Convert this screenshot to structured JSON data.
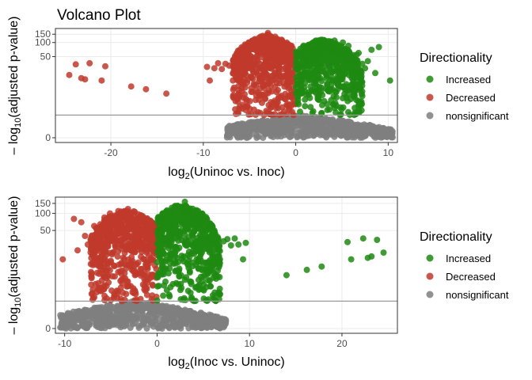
{
  "title": "Volcano Plot",
  "colors": {
    "increased": "#1f8a12",
    "decreased": "#c0392b",
    "nonsignificant": "#7f7f7f",
    "panel_border": "#333333",
    "grid": "#ebebeb",
    "threshold": "#999999"
  },
  "chart_data": [
    {
      "type": "scatter",
      "xlabel_base": "log",
      "xlabel_sub": "2",
      "xlabel_rest": "(Uninoc vs. Inoc)",
      "ylabel_lead": "– log",
      "ylabel_sub": "10",
      "ylabel_rest": "(adjusted p-value)",
      "xlim": [
        -26,
        11
      ],
      "x_ticks": [
        -20,
        -10,
        0,
        10
      ],
      "x_tick_labels": [
        "-20",
        "-10",
        "0",
        "10"
      ],
      "y_scale": "pseudo-log",
      "y_ticks": [
        0,
        50,
        100,
        150
      ],
      "y_tick_labels": [
        "0",
        "50",
        "100",
        "150"
      ],
      "threshold_y": 2,
      "legend": {
        "title": "Directionality",
        "position": "right",
        "entries": [
          "Increased",
          "Decreased",
          "nonsignificant"
        ]
      },
      "series": [
        {
          "name": "Increased",
          "x": [
            10.2,
            9.0,
            8.2,
            7.8,
            7.5,
            7.2,
            6.8,
            6.4,
            6.0,
            5.7,
            5.4,
            5.1,
            4.8,
            4.5,
            4.2,
            3.8,
            3.3,
            2.8,
            7.0,
            6.6,
            8.6
          ],
          "y": [
            15,
            80,
            70,
            40,
            28,
            35,
            60,
            25,
            45,
            85,
            30,
            100,
            20,
            70,
            110,
            50,
            95,
            40,
            18,
            55,
            22
          ]
        },
        {
          "name": "Decreased",
          "x": [
            -24.5,
            -23.8,
            -23.2,
            -22.8,
            -22.3,
            -21.0,
            -20.6,
            -17.8,
            -16.2,
            -14.0,
            -9.6,
            -9.3,
            -8.8,
            -8.4,
            -8.0,
            -7.6,
            -7.2,
            -6.8,
            -6.3,
            -5.8,
            -5.2,
            -4.5,
            -3.8,
            -3.2,
            -2.6,
            -2.0,
            -1.4,
            -3.0
          ],
          "y": [
            20,
            34,
            17,
            16,
            36,
            15,
            31,
            11,
            9.5,
            7.5,
            30,
            15,
            28,
            36,
            27,
            35,
            32,
            15,
            39,
            55,
            70,
            85,
            95,
            120,
            90,
            60,
            40,
            160
          ]
        }
      ],
      "cloud": {
        "decreased_x_range": [
          -6.8,
          0
        ],
        "increased_x_range": [
          0,
          7.2
        ],
        "nonsig_x_range": [
          -7.5,
          10.5
        ],
        "max_y_decreased": 150,
        "max_y_increased": 120,
        "max_y_nonsig": 2
      }
    },
    {
      "type": "scatter",
      "xlabel_base": "log",
      "xlabel_sub": "2",
      "xlabel_rest": "(Inoc vs. Uninoc)",
      "ylabel_lead": "– log",
      "ylabel_sub": "10",
      "ylabel_rest": "(adjusted p-value)",
      "xlim": [
        -11,
        26
      ],
      "x_ticks": [
        -10,
        0,
        10,
        20
      ],
      "x_tick_labels": [
        "-10",
        "0",
        "10",
        "20"
      ],
      "y_scale": "pseudo-log",
      "y_ticks": [
        0,
        50,
        100,
        150
      ],
      "y_tick_labels": [
        "0",
        "50",
        "100",
        "150"
      ],
      "threshold_y": 2,
      "legend": {
        "title": "Directionality",
        "position": "right",
        "entries": [
          "Increased",
          "Decreased",
          "nonsignificant"
        ]
      },
      "series": [
        {
          "name": "Increased",
          "x": [
            24.5,
            23.8,
            23.2,
            22.8,
            22.3,
            21.0,
            20.6,
            17.8,
            16.2,
            14.0,
            9.6,
            9.3,
            8.8,
            8.4,
            8.0,
            7.6,
            7.2,
            6.8,
            6.3,
            5.8,
            5.2,
            4.5,
            3.8,
            3.2,
            2.6,
            2.0,
            1.4,
            3.0
          ],
          "y": [
            20,
            34,
            17,
            16,
            36,
            15,
            31,
            11,
            9.5,
            7.5,
            30,
            15,
            28,
            36,
            27,
            35,
            32,
            15,
            39,
            55,
            70,
            85,
            95,
            120,
            90,
            60,
            40,
            160
          ]
        },
        {
          "name": "Decreased",
          "x": [
            -10.2,
            -9.0,
            -8.2,
            -7.8,
            -7.5,
            -7.2,
            -6.8,
            -6.4,
            -6.0,
            -5.7,
            -5.4,
            -5.1,
            -4.8,
            -4.5,
            -4.2,
            -3.8,
            -3.3,
            -2.8,
            -7.0,
            -6.6,
            -8.6
          ],
          "y": [
            15,
            80,
            70,
            40,
            28,
            35,
            60,
            25,
            45,
            85,
            30,
            100,
            20,
            70,
            110,
            50,
            95,
            40,
            18,
            55,
            22
          ]
        }
      ],
      "cloud": {
        "decreased_x_range": [
          -7.2,
          0
        ],
        "increased_x_range": [
          0,
          6.8
        ],
        "nonsig_x_range": [
          -10.5,
          7.5
        ],
        "max_y_decreased": 120,
        "max_y_increased": 150,
        "max_y_nonsig": 2
      }
    }
  ]
}
